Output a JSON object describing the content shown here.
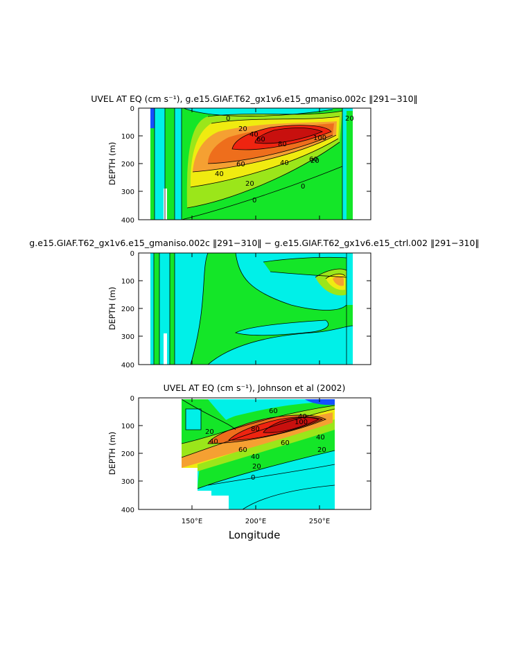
{
  "chart_data": [
    {
      "type": "contour",
      "title": "UVEL AT EQ (cm s⁻¹), g.e15.GIAF.T62_gx1v6.e15_gmaniso.002c ‖291−310‖",
      "ylabel": "DEPTH (m)",
      "xlabel": "",
      "ylim": [
        400,
        0
      ],
      "xlim": [
        108,
        290
      ],
      "y_ticks": [
        "0",
        "100",
        "200",
        "300",
        "400"
      ],
      "x_tick_labels": [],
      "contour_labels": [
        "0",
        "20",
        "40",
        "60",
        "80",
        "100",
        "60",
        "40",
        "20",
        "0",
        "20",
        "40",
        "60",
        "20",
        "0"
      ],
      "core_max": 100,
      "core_lon": 228,
      "core_depth": 120
    },
    {
      "type": "contour",
      "title": "g.e15.GIAF.T62_gx1v6.e15_gmaniso.002c ‖291−310‖ − g.e15.GIAF.T62_gx1v6.e15_ctrl.002 ‖291−310‖",
      "ylabel": "DEPTH (m)",
      "xlabel": "",
      "ylim": [
        400,
        0
      ],
      "xlim": [
        108,
        290
      ],
      "y_ticks": [
        "0",
        "100",
        "200",
        "300",
        "400"
      ],
      "x_tick_labels": []
    },
    {
      "type": "contour",
      "title": "UVEL AT EQ (cm s⁻¹), Johnson et al (2002)",
      "ylabel": "DEPTH (m)",
      "xlabel": "Longitude",
      "ylim": [
        400,
        0
      ],
      "xlim": [
        108,
        290
      ],
      "y_ticks": [
        "0",
        "100",
        "200",
        "300",
        "400"
      ],
      "x_tick_labels": [
        "150°E",
        "200°E",
        "250°E"
      ],
      "x_tick_values": [
        150,
        200,
        250
      ],
      "contour_labels": [
        "20",
        "40",
        "60",
        "80",
        "100",
        "60",
        "40",
        "20",
        "40",
        "60",
        "40",
        "20",
        "0"
      ],
      "core_max": 100,
      "core_lon": 232,
      "core_depth": 105
    }
  ],
  "colors": {
    "cyan": "#00f0e8",
    "green": "#14e628",
    "yellowgreen": "#9be61a",
    "yellow": "#f0eb10",
    "orange": "#f5a032",
    "darkorange": "#ee6e1c",
    "red": "#ee2410",
    "darkred": "#c8100e",
    "blue": "#1450ff"
  }
}
